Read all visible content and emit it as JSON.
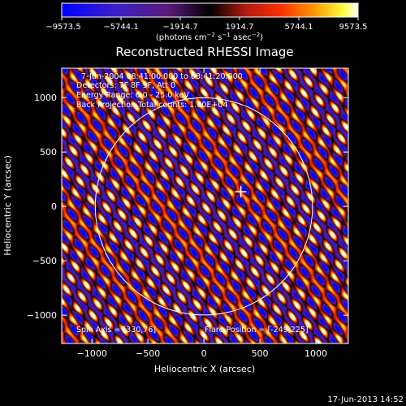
{
  "colorbar": {
    "ticks": [
      "−9573.5",
      "−5744.1",
      "−1914.7",
      "1914.7",
      "5744.1",
      "9573.5"
    ],
    "unit_main": "(photons cm",
    "unit_exp1": "−2",
    "unit_mid": " s",
    "unit_exp2": "−1",
    "unit_tail": " asec",
    "unit_exp3": "−2",
    "unit_close": ")",
    "colors": [
      "#0000ff",
      "#ffffff"
    ]
  },
  "chart_data": {
    "type": "heatmap",
    "title": "Reconstructed RHESSI Image",
    "xlabel": "Heliocentric X (arcsec)",
    "ylabel": "Heliocentric Y (arcsec)",
    "xlim": [
      -1270,
      1290
    ],
    "ylim": [
      -1260,
      1270
    ],
    "xticks": [
      -1000,
      -500,
      0,
      500,
      1000
    ],
    "yticks": [
      -1000,
      -500,
      0,
      500,
      1000
    ],
    "xtick_labels": [
      "−1000",
      "−500",
      "0",
      "500",
      "1000"
    ],
    "ytick_labels": [
      "−1000",
      "−500",
      "0",
      "500",
      "1000"
    ],
    "value_range": [
      -9573.5,
      9573.5
    ],
    "solar_limb_radius_arcsec": 970,
    "cross_position": [
      330,
      135
    ],
    "annotations": {
      "time": "7-Jun-2004 08:41:00.000 to 08:41:20.000",
      "detectors": "Detectors: 7F 8F 9F, Att 0",
      "energy": "Energy Range: 6.0 - 25.0 keV",
      "method": "Back Projection    Total counts: 1.00E+04",
      "spin_axis": "Spin Axis = [330,76]",
      "flare_position": "Flare Position = [-249,225]"
    }
  },
  "footer": {
    "timestamp": "17-Jun-2013 14:52"
  }
}
